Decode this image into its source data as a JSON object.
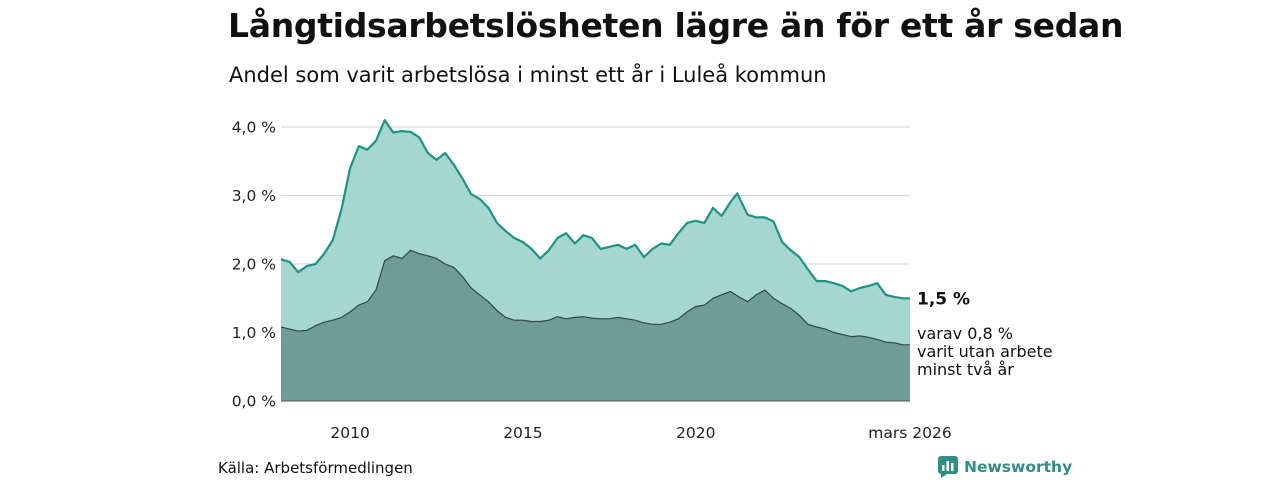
{
  "title": "Långtidsarbetslösheten lägre än för ett år sedan",
  "subtitle": "Andel som varit arbetslösa i minst ett år i Luleå kommun",
  "source": "Källa: Arbetsförmedlingen",
  "brand": "Newsworthy",
  "last_value_label": "1,5 %",
  "secondary_label_lines": [
    "varav 0,8 %",
    "varit utan arbete",
    "minst två år"
  ],
  "colors": {
    "upper_fill": "#a5d6d0",
    "upper_line": "#1b9486",
    "lower_fill": "#6f9c96",
    "lower_line": "#2e4a47",
    "grid": "#d9d9d9"
  },
  "chart_data": {
    "type": "area",
    "title": "Långtidsarbetslösheten lägre än för ett år sedan",
    "subtitle": "Andel som varit arbetslösa i minst ett år i Luleå kommun",
    "ylim": [
      0,
      4
    ],
    "y_ticks": [
      {
        "value": 0,
        "label": "0,0 %"
      },
      {
        "value": 1,
        "label": "1,0 %"
      },
      {
        "value": 2,
        "label": "2,0 %"
      },
      {
        "value": 3,
        "label": "3,0 %"
      },
      {
        "value": 4,
        "label": "4,0 %"
      }
    ],
    "x_range": [
      2008.0,
      2026.2
    ],
    "x_ticks": [
      {
        "value": 2010,
        "label": "2010"
      },
      {
        "value": 2015,
        "label": "2015"
      },
      {
        "value": 2020,
        "label": "2020"
      },
      {
        "value": 2026.2,
        "label": "mars 2026"
      }
    ],
    "grid": true,
    "series": [
      {
        "points": [
          [
            2008.0,
            2.07
          ],
          [
            2008.25,
            2.03
          ],
          [
            2008.5,
            1.88
          ],
          [
            2008.75,
            1.97
          ],
          [
            2009.0,
            2.0
          ],
          [
            2009.25,
            2.15
          ],
          [
            2009.5,
            2.35
          ],
          [
            2009.75,
            2.8
          ],
          [
            2010.0,
            3.4
          ],
          [
            2010.25,
            3.72
          ],
          [
            2010.5,
            3.67
          ],
          [
            2010.75,
            3.8
          ],
          [
            2011.0,
            4.1
          ],
          [
            2011.25,
            3.92
          ],
          [
            2011.5,
            3.94
          ],
          [
            2011.75,
            3.93
          ],
          [
            2012.0,
            3.85
          ],
          [
            2012.25,
            3.62
          ],
          [
            2012.5,
            3.52
          ],
          [
            2012.75,
            3.62
          ],
          [
            2013.0,
            3.45
          ],
          [
            2013.25,
            3.25
          ],
          [
            2013.5,
            3.02
          ],
          [
            2013.75,
            2.95
          ],
          [
            2014.0,
            2.82
          ],
          [
            2014.25,
            2.6
          ],
          [
            2014.5,
            2.48
          ],
          [
            2014.75,
            2.38
          ],
          [
            2015.0,
            2.32
          ],
          [
            2015.25,
            2.22
          ],
          [
            2015.5,
            2.08
          ],
          [
            2015.75,
            2.2
          ],
          [
            2016.0,
            2.38
          ],
          [
            2016.25,
            2.45
          ],
          [
            2016.5,
            2.3
          ],
          [
            2016.75,
            2.42
          ],
          [
            2017.0,
            2.38
          ],
          [
            2017.25,
            2.22
          ],
          [
            2017.5,
            2.25
          ],
          [
            2017.75,
            2.28
          ],
          [
            2018.0,
            2.22
          ],
          [
            2018.25,
            2.28
          ],
          [
            2018.5,
            2.1
          ],
          [
            2018.75,
            2.22
          ],
          [
            2019.0,
            2.3
          ],
          [
            2019.25,
            2.28
          ],
          [
            2019.5,
            2.45
          ],
          [
            2019.75,
            2.6
          ],
          [
            2020.0,
            2.63
          ],
          [
            2020.25,
            2.6
          ],
          [
            2020.5,
            2.82
          ],
          [
            2020.75,
            2.7
          ],
          [
            2021.0,
            2.9
          ],
          [
            2021.2,
            3.03
          ],
          [
            2021.5,
            2.72
          ],
          [
            2021.75,
            2.68
          ],
          [
            2022.0,
            2.68
          ],
          [
            2022.25,
            2.62
          ],
          [
            2022.5,
            2.32
          ],
          [
            2022.75,
            2.2
          ],
          [
            2023.0,
            2.1
          ],
          [
            2023.25,
            1.92
          ],
          [
            2023.5,
            1.75
          ],
          [
            2023.75,
            1.75
          ],
          [
            2024.0,
            1.72
          ],
          [
            2024.25,
            1.68
          ],
          [
            2024.5,
            1.6
          ],
          [
            2024.75,
            1.65
          ],
          [
            2025.0,
            1.68
          ],
          [
            2025.25,
            1.72
          ],
          [
            2025.5,
            1.55
          ],
          [
            2025.75,
            1.52
          ],
          [
            2026.0,
            1.5
          ],
          [
            2026.2,
            1.5
          ]
        ]
      },
      {
        "points": [
          [
            2008.0,
            1.08
          ],
          [
            2008.25,
            1.05
          ],
          [
            2008.5,
            1.02
          ],
          [
            2008.75,
            1.03
          ],
          [
            2009.0,
            1.1
          ],
          [
            2009.25,
            1.15
          ],
          [
            2009.5,
            1.18
          ],
          [
            2009.75,
            1.22
          ],
          [
            2010.0,
            1.3
          ],
          [
            2010.25,
            1.4
          ],
          [
            2010.5,
            1.45
          ],
          [
            2010.75,
            1.62
          ],
          [
            2011.0,
            2.05
          ],
          [
            2011.25,
            2.12
          ],
          [
            2011.5,
            2.08
          ],
          [
            2011.75,
            2.2
          ],
          [
            2012.0,
            2.15
          ],
          [
            2012.25,
            2.12
          ],
          [
            2012.5,
            2.08
          ],
          [
            2012.75,
            2.0
          ],
          [
            2013.0,
            1.95
          ],
          [
            2013.25,
            1.82
          ],
          [
            2013.5,
            1.65
          ],
          [
            2013.75,
            1.55
          ],
          [
            2014.0,
            1.45
          ],
          [
            2014.25,
            1.32
          ],
          [
            2014.5,
            1.22
          ],
          [
            2014.75,
            1.18
          ],
          [
            2015.0,
            1.18
          ],
          [
            2015.25,
            1.16
          ],
          [
            2015.5,
            1.16
          ],
          [
            2015.75,
            1.18
          ],
          [
            2016.0,
            1.23
          ],
          [
            2016.25,
            1.2
          ],
          [
            2016.5,
            1.22
          ],
          [
            2016.75,
            1.23
          ],
          [
            2017.0,
            1.21
          ],
          [
            2017.25,
            1.2
          ],
          [
            2017.5,
            1.2
          ],
          [
            2017.75,
            1.22
          ],
          [
            2018.0,
            1.2
          ],
          [
            2018.25,
            1.18
          ],
          [
            2018.5,
            1.14
          ],
          [
            2018.75,
            1.12
          ],
          [
            2019.0,
            1.12
          ],
          [
            2019.25,
            1.15
          ],
          [
            2019.5,
            1.2
          ],
          [
            2019.75,
            1.3
          ],
          [
            2020.0,
            1.38
          ],
          [
            2020.25,
            1.4
          ],
          [
            2020.5,
            1.5
          ],
          [
            2020.75,
            1.55
          ],
          [
            2021.0,
            1.6
          ],
          [
            2021.25,
            1.52
          ],
          [
            2021.5,
            1.45
          ],
          [
            2021.75,
            1.55
          ],
          [
            2022.0,
            1.62
          ],
          [
            2022.25,
            1.5
          ],
          [
            2022.5,
            1.42
          ],
          [
            2022.75,
            1.35
          ],
          [
            2023.0,
            1.25
          ],
          [
            2023.25,
            1.12
          ],
          [
            2023.5,
            1.08
          ],
          [
            2023.75,
            1.05
          ],
          [
            2024.0,
            1.0
          ],
          [
            2024.25,
            0.97
          ],
          [
            2024.5,
            0.94
          ],
          [
            2024.75,
            0.95
          ],
          [
            2025.0,
            0.93
          ],
          [
            2025.25,
            0.9
          ],
          [
            2025.5,
            0.86
          ],
          [
            2025.75,
            0.85
          ],
          [
            2026.0,
            0.82
          ],
          [
            2026.2,
            0.82
          ]
        ]
      }
    ]
  }
}
